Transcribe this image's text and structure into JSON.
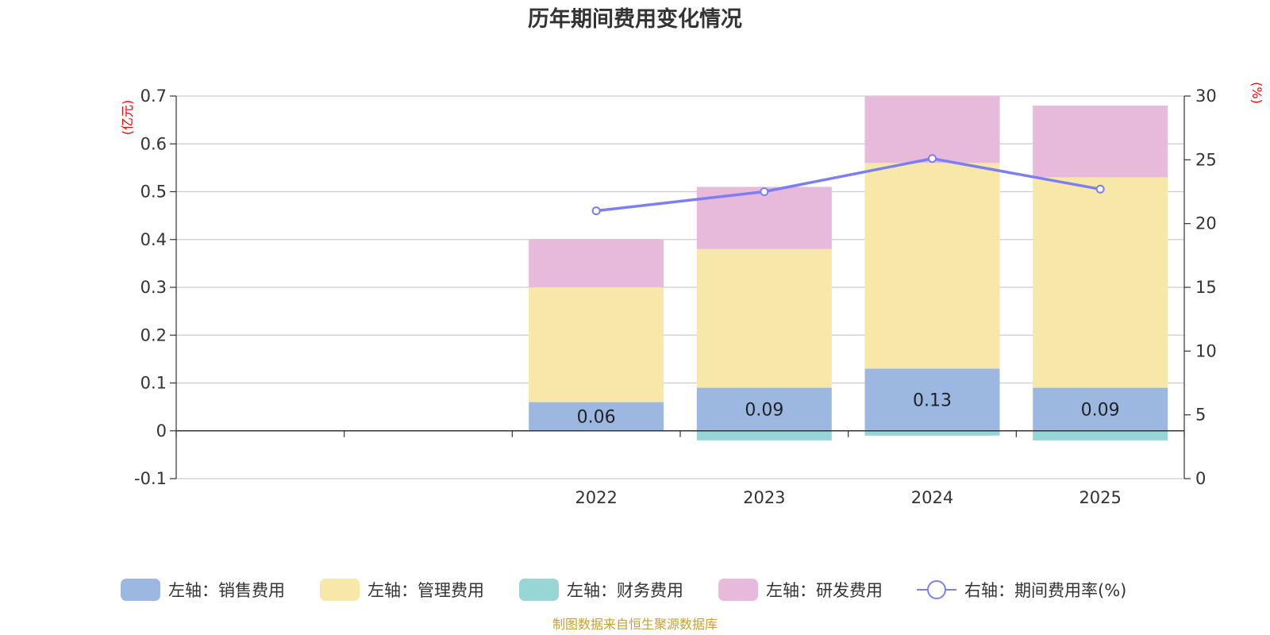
{
  "chart_data": {
    "type": "bar",
    "title": "历年期间费用变化情况",
    "categories": [
      "",
      "",
      "2022",
      "2023",
      "2024",
      "2025"
    ],
    "series": [
      {
        "name": "左轴：销售费用",
        "axis": "left",
        "type": "bar",
        "color": "#9cb8e1",
        "values": [
          null,
          null,
          0.06,
          0.09,
          0.13,
          0.09
        ]
      },
      {
        "name": "左轴：管理费用",
        "axis": "left",
        "type": "bar",
        "color": "#f7e7a9",
        "values": [
          null,
          null,
          0.24,
          0.29,
          0.43,
          0.44
        ]
      },
      {
        "name": "左轴：财务费用",
        "axis": "left",
        "type": "bar",
        "color": "#98d5d5",
        "values": [
          null,
          null,
          0.0,
          -0.02,
          -0.01,
          -0.02
        ]
      },
      {
        "name": "左轴：研发费用",
        "axis": "left",
        "type": "bar",
        "color": "#e7b9da",
        "values": [
          null,
          null,
          0.1,
          0.13,
          0.14,
          0.15
        ]
      },
      {
        "name": "右轴：期间费用率(%)",
        "axis": "right",
        "type": "line",
        "color": "#7b7fef",
        "values": [
          null,
          null,
          21.0,
          22.5,
          25.1,
          22.7
        ]
      }
    ],
    "data_labels": [
      "",
      "",
      "0.06",
      "0.09",
      "0.13",
      "0.09"
    ],
    "left_axis": {
      "unit": "(亿元)",
      "ylim": [
        -0.1,
        0.7
      ],
      "ticks": [
        "-0.1",
        "0",
        "0.1",
        "0.2",
        "0.3",
        "0.4",
        "0.5",
        "0.6",
        "0.7"
      ]
    },
    "right_axis": {
      "unit": "(%)",
      "ylim": [
        0,
        30
      ],
      "ticks": [
        "0",
        "5",
        "10",
        "15",
        "20",
        "25",
        "30"
      ]
    },
    "grid": true,
    "legend_position": "bottom"
  },
  "source_note": "制图数据来自恒生聚源数据库"
}
